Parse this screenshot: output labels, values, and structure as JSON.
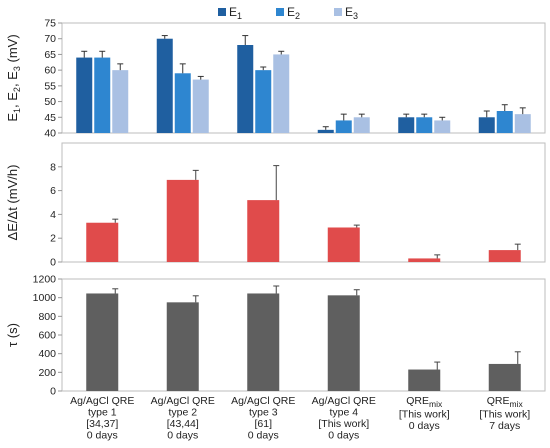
{
  "chart_data": [
    {
      "type": "bar",
      "ylabel_main": "E",
      "ylabel_subs": [
        "1",
        "2",
        "3"
      ],
      "ylabel_unit": "(mV)",
      "ylim": [
        40,
        75
      ],
      "yticks": [
        40,
        45,
        50,
        55,
        60,
        65,
        70,
        75
      ],
      "legend_placement": "top",
      "series": [
        {
          "name": "E",
          "sub": "1",
          "color": "#1f5fa0",
          "values": [
            64,
            70,
            68,
            41,
            45,
            45
          ],
          "errors": [
            2,
            1,
            3,
            1,
            1,
            2
          ]
        },
        {
          "name": "E",
          "sub": "2",
          "color": "#2e86d0",
          "values": [
            64,
            59,
            60,
            44,
            45,
            47
          ],
          "errors": [
            2,
            3,
            1,
            2,
            1,
            2
          ]
        },
        {
          "name": "E",
          "sub": "3",
          "color": "#a9c0e3",
          "values": [
            60,
            57,
            65,
            45,
            44,
            46
          ],
          "errors": [
            2,
            1,
            1,
            1,
            1,
            2
          ]
        }
      ]
    },
    {
      "type": "bar",
      "ylabel": "ΔE/Δt  (mV/h)",
      "ylim": [
        0,
        10
      ],
      "yticks": [
        0,
        2,
        4,
        6,
        8
      ],
      "color": "#e04b4b",
      "values": [
        3.3,
        6.9,
        5.2,
        2.9,
        0.3,
        1.0
      ],
      "errors": [
        0.3,
        0.8,
        2.9,
        0.2,
        0.3,
        0.5
      ]
    },
    {
      "type": "bar",
      "ylabel": "τ (s)",
      "ylim": [
        0,
        1200
      ],
      "yticks": [
        0,
        200,
        400,
        600,
        800,
        1000,
        1200
      ],
      "color": "#5f5f5f",
      "values": [
        1045,
        950,
        1045,
        1025,
        230,
        290
      ],
      "errors": [
        50,
        70,
        80,
        60,
        80,
        130
      ]
    }
  ],
  "categories": [
    {
      "lines": [
        "Ag/AgCl QRE",
        "type 1",
        "[34,37]",
        "0 days"
      ]
    },
    {
      "lines": [
        "Ag/AgCl QRE",
        "type 2",
        "[43,44]",
        "0 days"
      ]
    },
    {
      "lines": [
        "Ag/AgCl QRE",
        "type 3",
        "[61]",
        "0 days"
      ]
    },
    {
      "lines": [
        "Ag/AgCl QRE",
        "type 4",
        "[This work]",
        "0 days"
      ]
    },
    {
      "main": "QRE",
      "sub": "mix",
      "lines": [
        "[This work]",
        "0 days"
      ]
    },
    {
      "main": "QRE",
      "sub": "mix",
      "lines": [
        "[This work]",
        "7 days"
      ]
    }
  ]
}
